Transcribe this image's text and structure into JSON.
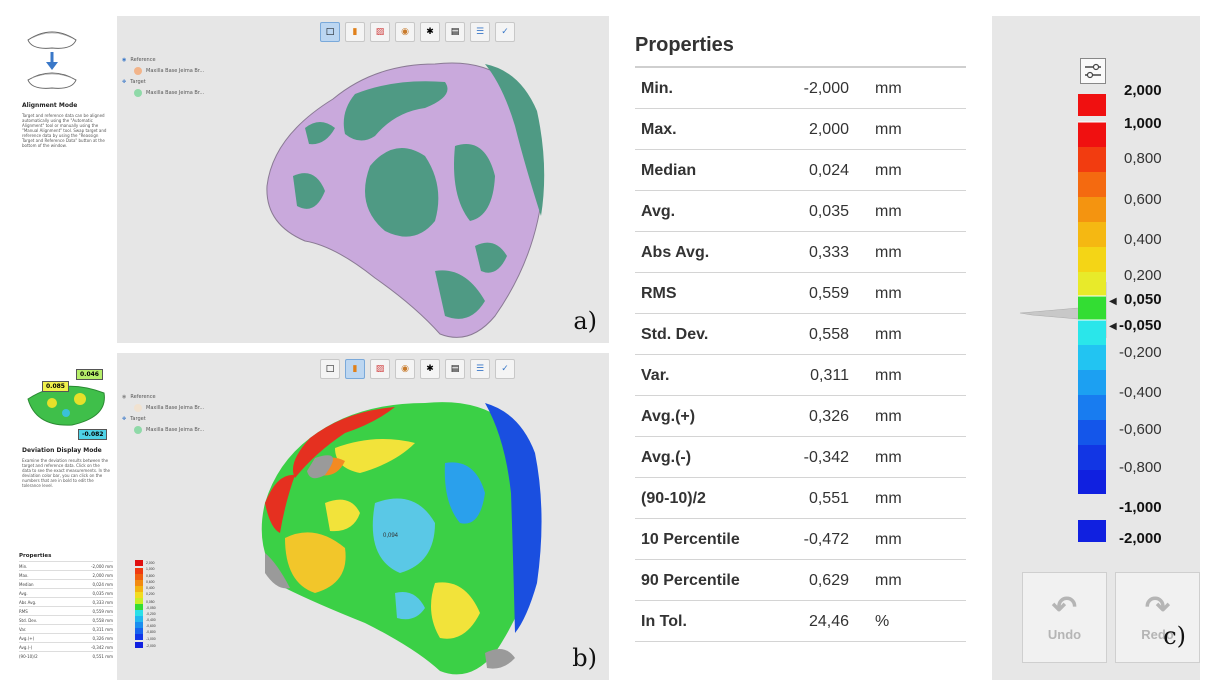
{
  "panel_a": {
    "label": "a)",
    "guide_title": "Alignment Mode",
    "guide_text": "Target and reference data can be aligned automatically using the \"Automatic Alignment\" tool or manually using the \"Manual Alignment\" tool. Swap target and reference data by using the \"Reassign Target and Reference Data\" button at the bottom of the window.",
    "tree": [
      {
        "label": "Reference",
        "icon": "eye-icon"
      },
      {
        "label": "Maxilla Base Jeima Br...",
        "color": "#f2b48a"
      },
      {
        "label": "Target",
        "icon": "move-icon"
      },
      {
        "label": "Maxilla Base Jeima Br...",
        "color": "#8fd9a8"
      }
    ],
    "model_colors": {
      "reference": "#c9a9dc",
      "target": "#4f9a84"
    }
  },
  "panel_b": {
    "label": "b)",
    "guide_title": "Deviation Display Mode",
    "guide_text": "Examine the deviation results between the target and reference data. Click on the data to see the exact measurements. In the deviation color bar, you can click on the numbers that are in bold to edit the tolerance level.",
    "tags": [
      "0.085",
      "0.046",
      "-0.082"
    ],
    "tree": [
      {
        "label": "Reference",
        "icon": "eye-icon"
      },
      {
        "label": "Maxilla Base Jeima Br...",
        "color": "#f1e2d0"
      },
      {
        "label": "Target",
        "icon": "move-icon"
      },
      {
        "label": "Maxilla Base Jeima Br...",
        "color": "#8fd9a8"
      }
    ],
    "point_label": "0,094",
    "mini_title": "Properties",
    "mini_rows": [
      {
        "label": "Min.",
        "value": "-2,000 mm"
      },
      {
        "label": "Max.",
        "value": "2,000 mm"
      },
      {
        "label": "Median",
        "value": "0,024 mm"
      },
      {
        "label": "Avg.",
        "value": "0,035 mm"
      },
      {
        "label": "Abs Avg.",
        "value": "0,333 mm"
      },
      {
        "label": "RMS",
        "value": "0,559 mm"
      },
      {
        "label": "Std. Dev.",
        "value": "0,558 mm"
      },
      {
        "label": "Var.",
        "value": "0,311 mm"
      },
      {
        "label": "Avg.(+)",
        "value": "0,326 mm"
      },
      {
        "label": "Avg.(-)",
        "value": "-0,342 mm"
      },
      {
        "label": "(90-10)/2",
        "value": "0,551 mm"
      }
    ],
    "mini_bar_labels": [
      "2,000",
      "1,000",
      "0,800",
      "0,600",
      "0,400",
      "0,200",
      "0,050",
      "-0,050",
      "-0,200",
      "-0,400",
      "-0,600",
      "-0,800",
      "-1,000",
      "-2,000"
    ]
  },
  "toolbar_icons": [
    "select-icon",
    "deviation-icon",
    "cross-section-icon",
    "compare-icon",
    "axis-icon",
    "report-icon",
    "settings-icon",
    "check-icon"
  ],
  "properties": {
    "title": "Properties",
    "rows": [
      {
        "label": "Min.",
        "value": "-2,000",
        "unit": "mm"
      },
      {
        "label": "Max.",
        "value": "2,000",
        "unit": "mm"
      },
      {
        "label": "Median",
        "value": "0,024",
        "unit": "mm"
      },
      {
        "label": "Avg.",
        "value": "0,035",
        "unit": "mm"
      },
      {
        "label": "Abs Avg.",
        "value": "0,333",
        "unit": "mm"
      },
      {
        "label": "RMS",
        "value": "0,559",
        "unit": "mm"
      },
      {
        "label": "Std. Dev.",
        "value": "0,558",
        "unit": "mm"
      },
      {
        "label": "Var.",
        "value": "0,311",
        "unit": "mm"
      },
      {
        "label": "Avg.(+)",
        "value": "0,326",
        "unit": "mm"
      },
      {
        "label": "Avg.(-)",
        "value": "-0,342",
        "unit": "mm"
      },
      {
        "label": "(90-10)/2",
        "value": "0,551",
        "unit": "mm"
      },
      {
        "label": "10 Percentile",
        "value": "-0,472",
        "unit": "mm"
      },
      {
        "label": "90 Percentile",
        "value": "0,629",
        "unit": "mm"
      },
      {
        "label": "In Tol.",
        "value": "24,46",
        "unit": "%"
      }
    ]
  },
  "color_bar": {
    "panel_label": "c)",
    "labels": [
      {
        "text": "2,000",
        "bold": true
      },
      {
        "text": "1,000",
        "bold": true
      },
      {
        "text": "0,800",
        "bold": false
      },
      {
        "text": "0,600",
        "bold": false
      },
      {
        "text": "0,400",
        "bold": false
      },
      {
        "text": "0,200",
        "bold": false
      },
      {
        "text": "0,050",
        "bold": true
      },
      {
        "text": "-0,050",
        "bold": true
      },
      {
        "text": "-0,200",
        "bold": false
      },
      {
        "text": "-0,400",
        "bold": false
      },
      {
        "text": "-0,600",
        "bold": false
      },
      {
        "text": "-0,800",
        "bold": false
      },
      {
        "text": "-1,000",
        "bold": true
      },
      {
        "text": "-2,000",
        "bold": true
      }
    ],
    "colors": {
      "over": "#f01010",
      "under": "#1020e0",
      "tolerance": "#33dd33"
    },
    "settings_icon": "sliders-icon",
    "undo_label": "Undo",
    "redo_label": "Redo"
  }
}
